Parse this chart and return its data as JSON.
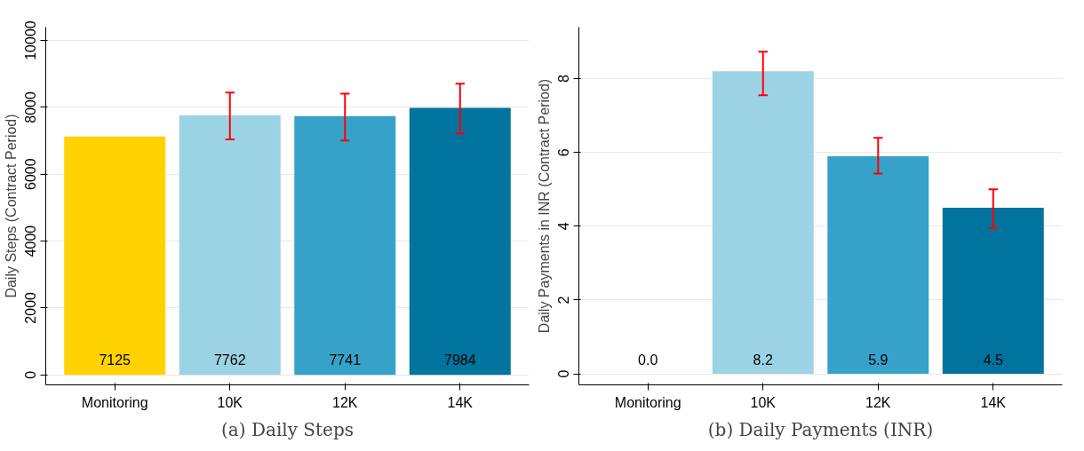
{
  "chart_data": [
    {
      "type": "bar",
      "ylabel": "Daily Steps (Contract Period)",
      "categories": [
        "Monitoring",
        "10K",
        "12K",
        "14K"
      ],
      "values": [
        7125,
        7762,
        7741,
        7984
      ],
      "colors": [
        "#ffd200",
        "#9bd3e5",
        "#36a2c9",
        "#00749e"
      ],
      "value_labels": [
        "7125",
        "7762",
        "7741",
        "7984"
      ],
      "errors": [
        null,
        [
          7040,
          8440
        ],
        [
          7010,
          8410
        ],
        [
          7220,
          8710
        ]
      ],
      "ylim": [
        -300,
        10400
      ],
      "yticks": [
        0,
        2000,
        4000,
        6000,
        8000,
        10000
      ],
      "grid": "y",
      "annotations": [
        "(a) Daily Steps"
      ]
    },
    {
      "type": "bar",
      "ylabel": "Daily Payments in INR (Contract Period)",
      "categories": [
        "Monitoring",
        "10K",
        "12K",
        "14K"
      ],
      "values": [
        0.0,
        8.2,
        5.9,
        4.5
      ],
      "colors": [
        "#ffd200",
        "#9bd3e5",
        "#36a2c9",
        "#00749e"
      ],
      "value_labels": [
        "0.0",
        "8.2",
        "5.9",
        "4.5"
      ],
      "errors": [
        null,
        [
          7.55,
          8.73
        ],
        [
          5.43,
          6.4
        ],
        [
          3.95,
          5.0
        ]
      ],
      "ylim": [
        -0.3,
        9.4
      ],
      "yticks": [
        0,
        2,
        4,
        6,
        8
      ],
      "grid": "y",
      "annotations": [
        "(b) Daily Payments (INR)"
      ]
    }
  ]
}
